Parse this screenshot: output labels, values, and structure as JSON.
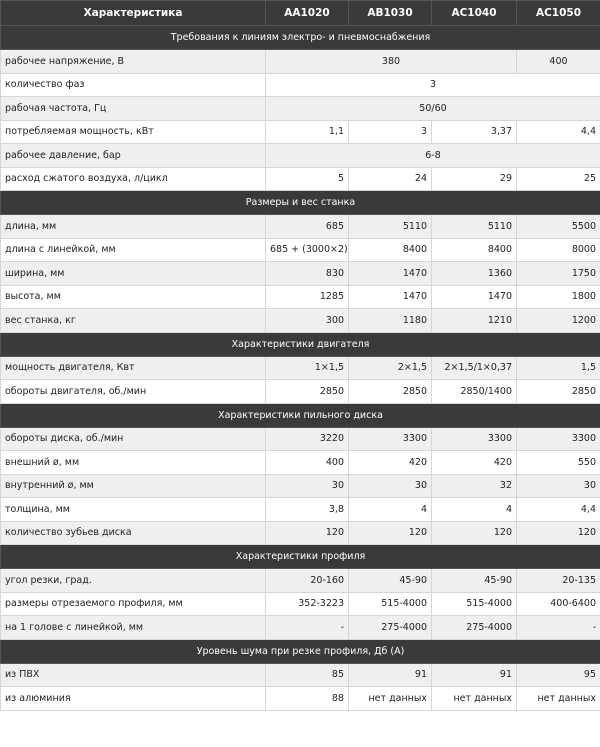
{
  "header": [
    "Характеристика",
    "AA1020",
    "AB1030",
    "AC1040",
    "AC1050"
  ],
  "sections": [
    {
      "title": "Требования к линиям электро- и пневмоснабжения",
      "rows": [
        {
          "label": "рабочее напряжение, В",
          "cells": [
            {
              "v": "380",
              "span": 3
            },
            {
              "v": "400",
              "span": 1,
              "align": "center"
            }
          ]
        },
        {
          "label": "количество фаз",
          "cells": [
            {
              "v": "3",
              "span": 4
            }
          ]
        },
        {
          "label": "рабочая частота, Гц",
          "cells": [
            {
              "v": "50/60",
              "span": 4
            }
          ]
        },
        {
          "label": "потребляемая мощность, кВт",
          "cells": [
            {
              "v": "1,1"
            },
            {
              "v": "3"
            },
            {
              "v": "3,37"
            },
            {
              "v": "4,4"
            }
          ]
        },
        {
          "label": "рабочее давление, бар",
          "cells": [
            {
              "v": "6-8",
              "span": 4
            }
          ]
        },
        {
          "label": "расход сжатого воздуха, л/цикл",
          "cells": [
            {
              "v": "5"
            },
            {
              "v": "24"
            },
            {
              "v": "29"
            },
            {
              "v": "25"
            }
          ]
        }
      ]
    },
    {
      "title": "Размеры и вес станка",
      "rows": [
        {
          "label": "длина, мм",
          "cells": [
            {
              "v": "685"
            },
            {
              "v": "5110"
            },
            {
              "v": "5110"
            },
            {
              "v": "5500"
            }
          ]
        },
        {
          "label": "длина с линейкой, мм",
          "cells": [
            {
              "v": "685 + (3000×2)"
            },
            {
              "v": "8400"
            },
            {
              "v": "8400"
            },
            {
              "v": "8000"
            }
          ]
        },
        {
          "label": "ширина, мм",
          "cells": [
            {
              "v": "830"
            },
            {
              "v": "1470"
            },
            {
              "v": "1360"
            },
            {
              "v": "1750"
            }
          ]
        },
        {
          "label": "высота, мм",
          "cells": [
            {
              "v": "1285"
            },
            {
              "v": "1470"
            },
            {
              "v": "1470"
            },
            {
              "v": "1800"
            }
          ]
        },
        {
          "label": "вес станка, кг",
          "cells": [
            {
              "v": "300"
            },
            {
              "v": "1180"
            },
            {
              "v": "1210"
            },
            {
              "v": "1200"
            }
          ]
        }
      ]
    },
    {
      "title": "Характеристики двигателя",
      "rows": [
        {
          "label": "мощность двигателя, Квт",
          "cells": [
            {
              "v": "1×1,5"
            },
            {
              "v": "2×1,5"
            },
            {
              "v": "2×1,5/1×0,37"
            },
            {
              "v": "1,5"
            }
          ]
        },
        {
          "label": "обороты двигателя, об./мин",
          "cells": [
            {
              "v": "2850"
            },
            {
              "v": "2850"
            },
            {
              "v": "2850/1400"
            },
            {
              "v": "2850"
            }
          ]
        }
      ]
    },
    {
      "title": "Характеристики пильного диска",
      "rows": [
        {
          "label": "обороты диска, об./мин",
          "cells": [
            {
              "v": "3220"
            },
            {
              "v": "3300"
            },
            {
              "v": "3300"
            },
            {
              "v": "3300"
            }
          ]
        },
        {
          "label": "внешний ø, мм",
          "cells": [
            {
              "v": "400"
            },
            {
              "v": "420"
            },
            {
              "v": "420"
            },
            {
              "v": "550"
            }
          ]
        },
        {
          "label": "внутренний ø, мм",
          "cells": [
            {
              "v": "30"
            },
            {
              "v": "30"
            },
            {
              "v": "32"
            },
            {
              "v": "30"
            }
          ]
        },
        {
          "label": "толщина, мм",
          "cells": [
            {
              "v": "3,8"
            },
            {
              "v": "4"
            },
            {
              "v": "4"
            },
            {
              "v": "4,4"
            }
          ]
        },
        {
          "label": "количество зубьев диска",
          "cells": [
            {
              "v": "120"
            },
            {
              "v": "120"
            },
            {
              "v": "120"
            },
            {
              "v": "120"
            }
          ]
        }
      ]
    },
    {
      "title": "Характеристики профиля",
      "rows": [
        {
          "label": "угол резки, град.",
          "cells": [
            {
              "v": "20-160"
            },
            {
              "v": "45-90"
            },
            {
              "v": "45-90"
            },
            {
              "v": "20-135"
            }
          ]
        },
        {
          "label": "размеры отрезаемого профиля, мм",
          "cells": [
            {
              "v": "352-3223"
            },
            {
              "v": "515-4000"
            },
            {
              "v": "515-4000"
            },
            {
              "v": "400-6400"
            }
          ]
        },
        {
          "label": "на 1 голове с линейкой, мм",
          "cells": [
            {
              "v": "-"
            },
            {
              "v": "275-4000"
            },
            {
              "v": "275-4000"
            },
            {
              "v": "-"
            }
          ]
        }
      ]
    },
    {
      "title": "Уровень шума при резке профиля, Дб (А)",
      "rows": [
        {
          "label": "из ПВХ",
          "cells": [
            {
              "v": "85"
            },
            {
              "v": "91"
            },
            {
              "v": "91"
            },
            {
              "v": "95"
            }
          ]
        },
        {
          "label": "из алюминия",
          "cells": [
            {
              "v": "88"
            },
            {
              "v": "нет данных"
            },
            {
              "v": "нет данных"
            },
            {
              "v": "нет данных"
            }
          ]
        }
      ]
    }
  ]
}
